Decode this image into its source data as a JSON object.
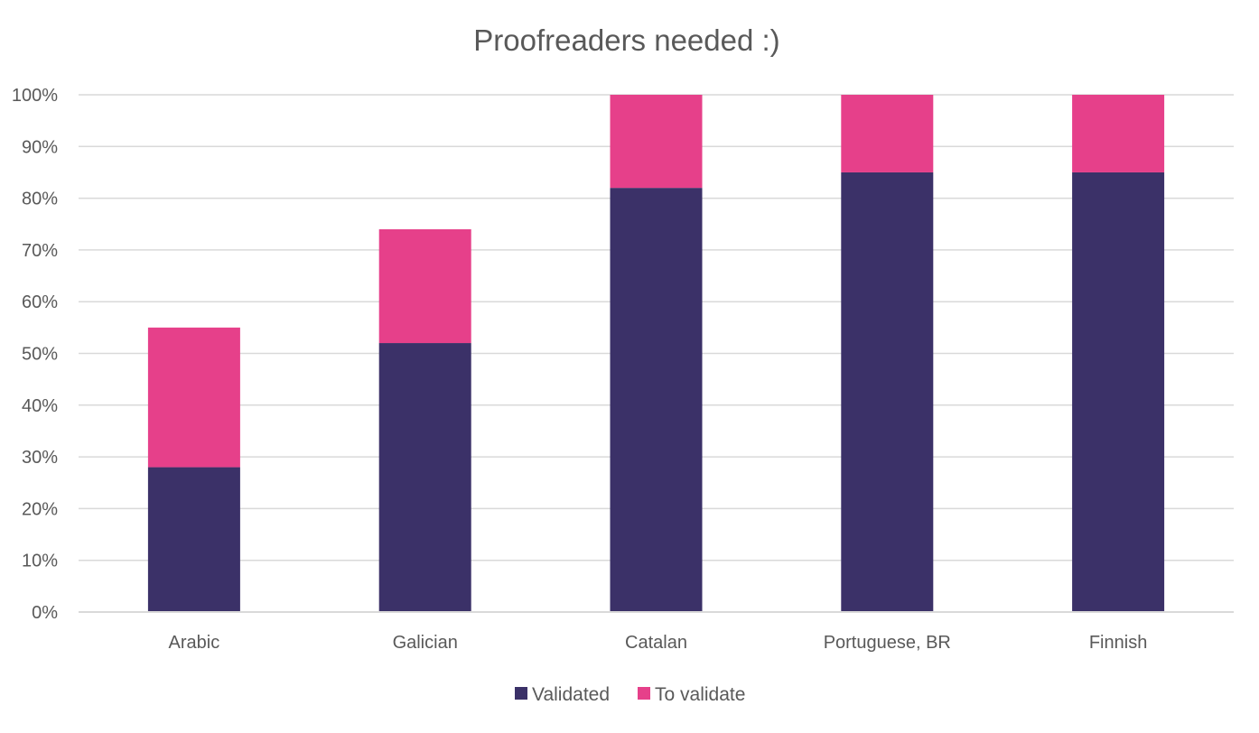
{
  "chart_data": {
    "type": "bar",
    "stacked": true,
    "title": "Proofreaders needed :)",
    "xlabel": "",
    "ylabel": "",
    "categories": [
      "Arabic",
      "Galician",
      "Catalan",
      "Portuguese, BR",
      "Finnish"
    ],
    "series": [
      {
        "name": "Validated",
        "color": "#3b3168",
        "values": [
          28,
          52,
          82,
          85,
          85
        ]
      },
      {
        "name": "To validate",
        "color": "#e6408a",
        "values": [
          27,
          22,
          18,
          15,
          15
        ]
      }
    ],
    "ylim": [
      0,
      100
    ],
    "yticks": [
      0,
      10,
      20,
      30,
      40,
      50,
      60,
      70,
      80,
      90,
      100
    ],
    "ytick_labels": [
      "0%",
      "10%",
      "20%",
      "30%",
      "40%",
      "50%",
      "60%",
      "70%",
      "80%",
      "90%",
      "100%"
    ],
    "grid": true,
    "legend_position": "bottom"
  }
}
